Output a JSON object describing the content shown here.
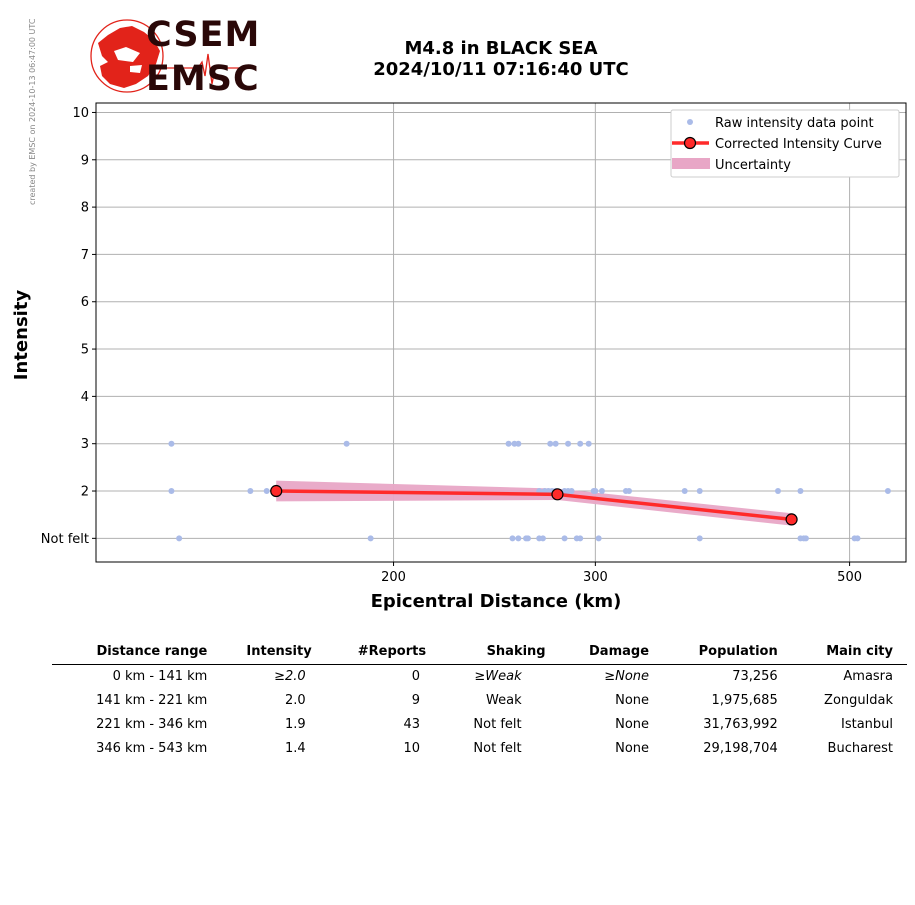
{
  "credit": "created by EMSC on 2024-10-13 06:47:00 UTC",
  "logo": {
    "line1": "CSEM",
    "line2": "EMSC",
    "colors": {
      "map": "#e2231a",
      "text": "#2a0808"
    }
  },
  "title": {
    "line1": "M4.8 in BLACK SEA",
    "line2": "2024/10/11 07:16:40 UTC"
  },
  "chart_data": {
    "type": "scatter",
    "xlabel": "Epicentral Distance (km)",
    "ylabel": "Intensity",
    "xscale": "log",
    "xlim": [
      110,
      560
    ],
    "ylim": [
      0.5,
      10.2
    ],
    "xticks": [
      200,
      300,
      500
    ],
    "xticklabels": [
      "200",
      "300",
      "500"
    ],
    "yticks": [
      1,
      2,
      3,
      4,
      5,
      6,
      7,
      8,
      9,
      10
    ],
    "yticklabels": [
      "Not felt",
      "2",
      "3",
      "4",
      "5",
      "6",
      "7",
      "8",
      "9",
      "10"
    ],
    "grid": true,
    "legend_position": "top-right",
    "legend": [
      "Raw intensity data point",
      "Corrected Intensity Curve",
      "Uncertainty"
    ],
    "colors": {
      "raw": "#aabbe8",
      "curve": "#ff2a2a",
      "marker_fill": "#ff2a2a",
      "marker_edge": "#000000",
      "band": "#e8a6c6",
      "grid": "#b0b0b0"
    },
    "raw_points": [
      [
        128,
        3
      ],
      [
        128,
        2
      ],
      [
        130,
        1
      ],
      [
        150,
        2
      ],
      [
        155,
        2
      ],
      [
        182,
        3
      ],
      [
        191,
        1
      ],
      [
        252,
        3
      ],
      [
        255,
        3
      ],
      [
        257,
        3
      ],
      [
        254,
        1
      ],
      [
        257,
        1
      ],
      [
        261,
        1
      ],
      [
        262,
        1
      ],
      [
        268,
        2
      ],
      [
        271,
        2
      ],
      [
        273,
        2
      ],
      [
        275,
        2
      ],
      [
        277,
        2
      ],
      [
        274,
        3
      ],
      [
        277,
        3
      ],
      [
        284,
        3
      ],
      [
        291,
        3
      ],
      [
        296,
        3
      ],
      [
        268,
        1
      ],
      [
        270,
        1
      ],
      [
        282,
        1
      ],
      [
        289,
        1
      ],
      [
        291,
        1
      ],
      [
        282,
        2
      ],
      [
        284,
        2
      ],
      [
        286,
        2
      ],
      [
        299,
        2
      ],
      [
        300,
        2
      ],
      [
        304,
        2
      ],
      [
        302,
        1
      ],
      [
        319,
        2
      ],
      [
        321,
        2
      ],
      [
        359,
        2
      ],
      [
        370,
        2
      ],
      [
        370,
        1
      ],
      [
        433,
        2
      ],
      [
        453,
        2
      ],
      [
        453,
        1
      ],
      [
        456,
        1
      ],
      [
        458,
        1
      ],
      [
        505,
        1
      ],
      [
        508,
        1
      ],
      [
        540,
        2
      ]
    ],
    "series": [
      {
        "name": "Corrected Intensity Curve",
        "x": [
          158,
          278,
          445
        ],
        "y": [
          2.0,
          1.93,
          1.4
        ]
      }
    ],
    "uncertainty": {
      "x": [
        158,
        278,
        445
      ],
      "lower": [
        1.78,
        1.81,
        1.27
      ],
      "upper": [
        2.22,
        2.05,
        1.53
      ]
    }
  },
  "table": {
    "headers": [
      "Distance range",
      "Intensity",
      "#Reports",
      "Shaking",
      "Damage",
      "Population",
      "Main city"
    ],
    "rows": [
      {
        "range": "0 km -  141 km",
        "intensity": "≥2.0",
        "reports": "0",
        "shaking": "≥Weak",
        "damage": "≥None",
        "population": "73,256",
        "city": "Amasra",
        "italic": true
      },
      {
        "range": "141 km -  221 km",
        "intensity": "2.0",
        "reports": "9",
        "shaking": "Weak",
        "damage": "None",
        "population": "1,975,685",
        "city": "Zonguldak",
        "italic": false
      },
      {
        "range": "221 km -  346 km",
        "intensity": "1.9",
        "reports": "43",
        "shaking": "Not felt",
        "damage": "None",
        "population": "31,763,992",
        "city": "Istanbul",
        "italic": false
      },
      {
        "range": "346 km -  543 km",
        "intensity": "1.4",
        "reports": "10",
        "shaking": "Not felt",
        "damage": "None",
        "population": "29,198,704",
        "city": "Bucharest",
        "italic": false
      }
    ]
  }
}
